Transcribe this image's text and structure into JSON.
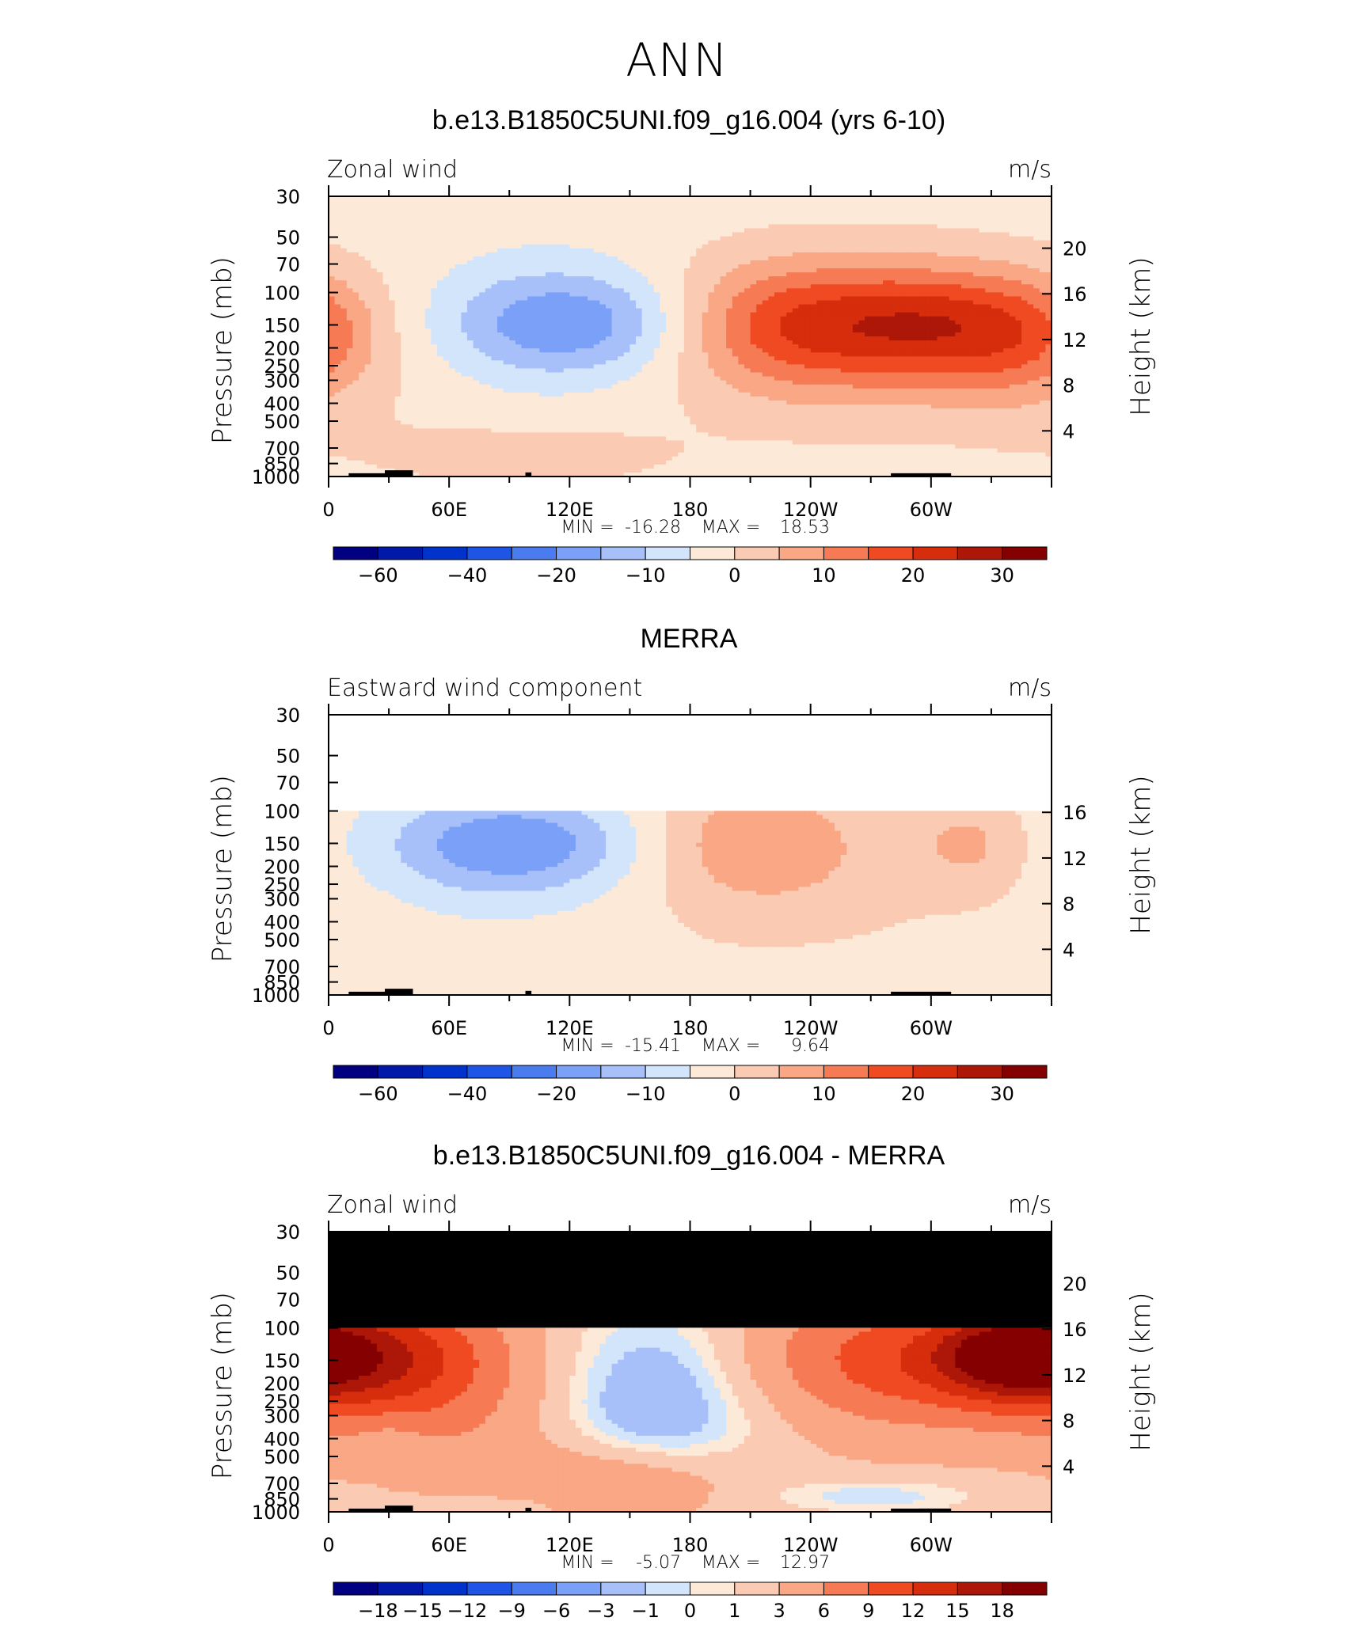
{
  "title": "ANN",
  "colors": {
    "standard_scale": [
      "#000080",
      "#0019a8",
      "#0033cc",
      "#1e55e6",
      "#4a7cf0",
      "#7aa0f7",
      "#a8c0fa",
      "#d2e5fb",
      "#fde9d8",
      "#fbcab3",
      "#f9a785",
      "#f67b55",
      "#f04a22",
      "#d62d0c",
      "#ac1708",
      "#850000"
    ],
    "diff_scale": [
      "#000080",
      "#0019a8",
      "#0033cc",
      "#1e55e6",
      "#4a7cf0",
      "#7aa0f7",
      "#a8c0fa",
      "#d2e5fb",
      "#fde9d8",
      "#fbcab3",
      "#f9a785",
      "#f67b55",
      "#f04a22",
      "#d62d0c",
      "#ac1708",
      "#850000"
    ],
    "missing": "#000000",
    "blank": "#ffffff"
  },
  "chart_data": [
    {
      "type": "heatmap",
      "title": "b.e13.B1850C5UNI.f09_g16.004 (yrs 6-10)",
      "left_label": "Zonal wind",
      "units": "m/s",
      "ylabel": "Pressure (mb)",
      "ylabel_right": "Height (km)",
      "pressure_ticks": [
        "30",
        "50",
        "70",
        "100",
        "150",
        "200",
        "250",
        "300",
        "400",
        "500",
        "700",
        "850",
        "1000"
      ],
      "height_ticks": [
        "20",
        "16",
        "12",
        "8",
        "4"
      ],
      "x_ticks": [
        "0",
        "60E",
        "120E",
        "180",
        "120W",
        "60W"
      ],
      "stats": {
        "min_label": "MIN =",
        "min": "-16.28",
        "max_label": "MAX =",
        "max": "18.53"
      },
      "colorbar_labels": [
        "-60",
        "-40",
        "-20",
        "-10",
        "0",
        "10",
        "20",
        "30"
      ],
      "missing_above": false,
      "blank_above": false,
      "features": [
        {
          "lon": 125,
          "p": 150,
          "value": -12,
          "sx": 45,
          "sp": 0.45
        },
        {
          "lon": 110,
          "p": 140,
          "value": -6,
          "sx": 40,
          "sp": 0.55
        },
        {
          "lon": 228,
          "p": 150,
          "value": 16,
          "sx": 40,
          "sp": 0.55
        },
        {
          "lon": 303,
          "p": 150,
          "value": 18,
          "sx": 38,
          "sp": 0.5
        },
        {
          "lon": 265,
          "p": 180,
          "value": 7,
          "sx": 75,
          "sp": 0.9
        },
        {
          "lon": 0,
          "p": 160,
          "value": 5,
          "sx": 22,
          "sp": 0.5
        },
        {
          "lon": 100,
          "p": 780,
          "value": 5,
          "sx": 55,
          "sp": 0.3
        },
        {
          "lon": 15,
          "p": 300,
          "value": 1.5,
          "sx": 50,
          "sp": 0.9
        },
        {
          "lon": 340,
          "p": 200,
          "value": 5,
          "sx": 25,
          "sp": 0.6
        }
      ],
      "base_value": -3
    },
    {
      "type": "heatmap",
      "title": "MERRA",
      "left_label": "Eastward wind component",
      "units": "m/s",
      "ylabel": "Pressure (mb)",
      "ylabel_right": "Height (km)",
      "pressure_ticks": [
        "30",
        "50",
        "70",
        "100",
        "150",
        "200",
        "250",
        "300",
        "400",
        "500",
        "700",
        "850",
        "1000"
      ],
      "height_ticks": [
        "16",
        "12",
        "8",
        "4"
      ],
      "x_ticks": [
        "0",
        "60E",
        "120E",
        "180",
        "120W",
        "60W"
      ],
      "stats": {
        "min_label": "MIN =",
        "min": "-15.41",
        "max_label": "MAX =",
        "max": "9.64"
      },
      "colorbar_labels": [
        "-60",
        "-40",
        "-20",
        "-10",
        "0",
        "10",
        "20",
        "30"
      ],
      "missing_above": false,
      "blank_above": true,
      "features": [
        {
          "lon": 95,
          "p": 150,
          "value": -12,
          "sx": 42,
          "sp": 0.4
        },
        {
          "lon": 80,
          "p": 170,
          "value": -6,
          "sx": 55,
          "sp": 0.6
        },
        {
          "lon": 210,
          "p": 150,
          "value": 9,
          "sx": 38,
          "sp": 0.55
        },
        {
          "lon": 320,
          "p": 150,
          "value": 7,
          "sx": 20,
          "sp": 0.4
        },
        {
          "lon": 240,
          "p": 200,
          "value": 4,
          "sx": 80,
          "sp": 1.0
        },
        {
          "lon": 100,
          "p": 730,
          "value": 2.5,
          "sx": 55,
          "sp": 0.3
        },
        {
          "lon": 20,
          "p": 400,
          "value": 1.2,
          "sx": 40,
          "sp": 1.0
        }
      ],
      "base_value": -3
    },
    {
      "type": "heatmap",
      "title": "b.e13.B1850C5UNI.f09_g16.004 - MERRA",
      "left_label": "Zonal wind",
      "units": "m/s",
      "ylabel": "Pressure (mb)",
      "ylabel_right": "Height (km)",
      "pressure_ticks": [
        "30",
        "50",
        "70",
        "100",
        "150",
        "200",
        "250",
        "300",
        "400",
        "500",
        "700",
        "850",
        "1000"
      ],
      "height_ticks": [
        "20",
        "16",
        "12",
        "8",
        "4"
      ],
      "x_ticks": [
        "0",
        "60E",
        "120E",
        "180",
        "120W",
        "60W"
      ],
      "stats": {
        "min_label": "MIN =",
        "min": "-5.07",
        "max_label": "MAX =",
        "max": "12.97"
      },
      "colorbar_labels": [
        "-18",
        "-15",
        "-12",
        "-9",
        "-6",
        "-3",
        "-1",
        "0",
        "1",
        "3",
        "6",
        "9",
        "12",
        "15",
        "18"
      ],
      "missing_above": true,
      "blank_above": false,
      "features": [
        {
          "lon": 165,
          "p": 230,
          "value": -6,
          "sx": 40,
          "sp": 0.85
        },
        {
          "lon": 300,
          "p": 150,
          "value": 9,
          "sx": 70,
          "sp": 0.6
        },
        {
          "lon": 340,
          "p": 140,
          "value": 11,
          "sx": 25,
          "sp": 0.35
        },
        {
          "lon": 20,
          "p": 140,
          "value": 7,
          "sx": 35,
          "sp": 0.5
        },
        {
          "lon": 60,
          "p": 200,
          "value": 4,
          "sx": 45,
          "sp": 0.8
        },
        {
          "lon": 145,
          "p": 700,
          "value": 5,
          "sx": 45,
          "sp": 0.35
        },
        {
          "lon": 270,
          "p": 820,
          "value": -3,
          "sx": 40,
          "sp": 0.15
        },
        {
          "lon": 80,
          "p": 930,
          "value": -2.5,
          "sx": 30,
          "sp": 0.1
        },
        {
          "lon": 30,
          "p": 420,
          "value": -1.5,
          "sx": 12,
          "sp": 0.3
        }
      ],
      "base_value": 2.2
    }
  ]
}
